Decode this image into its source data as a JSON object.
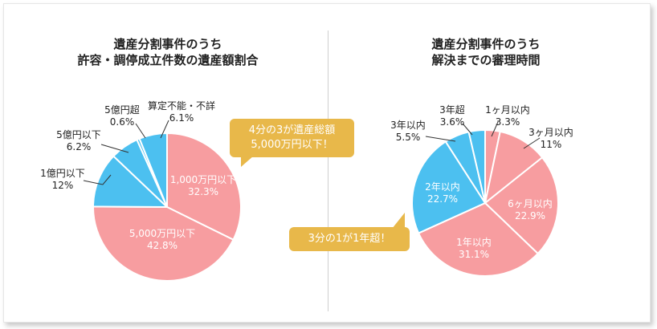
{
  "chart_data": [
    {
      "type": "pie",
      "title_lines": [
        "遺産分割事件のうち",
        "許容・調停成立件数の遺産額割合"
      ],
      "slices": [
        {
          "label": "1,000万円以下",
          "value": "32.3%",
          "pct": 32.3,
          "color": "#f79da0"
        },
        {
          "label": "5,000万円以下",
          "value": "42.8%",
          "pct": 42.8,
          "color": "#f79da0"
        },
        {
          "label": "1億円以下",
          "value": "12%",
          "pct": 12.0,
          "color": "#4cc0f0"
        },
        {
          "label": "5億円以下",
          "value": "6.2%",
          "pct": 6.2,
          "color": "#4cc0f0"
        },
        {
          "label": "5億円超",
          "value": "0.6%",
          "pct": 0.6,
          "color": "#4cc0f0"
        },
        {
          "label": "算定不能・不詳",
          "value": "6.1%",
          "pct": 6.1,
          "color": "#4cc0f0"
        }
      ],
      "callout": [
        "4分の3が遺産総額",
        "5,000万円以下！"
      ]
    },
    {
      "type": "pie",
      "title_lines": [
        "遺産分割事件のうち",
        "解決までの審理時間"
      ],
      "slices": [
        {
          "label": "1ヶ月以内",
          "value": "3.3%",
          "pct": 3.3,
          "color": "#f79da0"
        },
        {
          "label": "3ヶ月以内",
          "value": "11%",
          "pct": 11.0,
          "color": "#f79da0"
        },
        {
          "label": "6ヶ月以内",
          "value": "22.9%",
          "pct": 22.9,
          "color": "#f79da0"
        },
        {
          "label": "1年以内",
          "value": "31.1%",
          "pct": 31.1,
          "color": "#f79da0"
        },
        {
          "label": "2年以内",
          "value": "22.7%",
          "pct": 22.7,
          "color": "#4cc0f0"
        },
        {
          "label": "3年以内",
          "value": "5.5%",
          "pct": 5.5,
          "color": "#4cc0f0"
        },
        {
          "label": "3年超",
          "value": "3.6%",
          "pct": 3.6,
          "color": "#4cc0f0"
        }
      ],
      "callout": [
        "3分の1が1年超！"
      ]
    }
  ]
}
